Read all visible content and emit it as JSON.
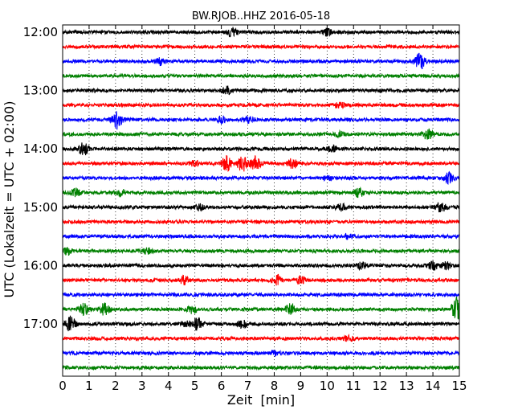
{
  "chart_data": {
    "type": "line",
    "title": "BW.RJOB..HHZ 2016-05-18",
    "xlabel": "Zeit  [min]",
    "ylabel": "UTC (Lokalzeit = UTC + 02:00)",
    "xlim": [
      0,
      15
    ],
    "x_ticks": [
      "0",
      "1",
      "2",
      "3",
      "4",
      "5",
      "6",
      "7",
      "8",
      "9",
      "10",
      "11",
      "12",
      "13",
      "14",
      "15"
    ],
    "y_tick_labels": [
      "12:00",
      "13:00",
      "14:00",
      "15:00",
      "16:00",
      "17:00"
    ],
    "grid": "vertical dotted at each minute",
    "trace_colors": [
      "#000000",
      "#ff0000",
      "#0000ff",
      "#008000"
    ],
    "traces": [
      {
        "start": "12:00",
        "events": [
          [
            6.4,
            1.6
          ],
          [
            10.0,
            1.2
          ]
        ]
      },
      {
        "start": "12:15",
        "events": []
      },
      {
        "start": "12:30",
        "events": [
          [
            3.7,
            1.2
          ],
          [
            13.5,
            3.0
          ]
        ]
      },
      {
        "start": "12:45",
        "events": []
      },
      {
        "start": "13:00",
        "events": [
          [
            6.2,
            1.4
          ]
        ]
      },
      {
        "start": "13:15",
        "events": [
          [
            10.5,
            1.0
          ]
        ]
      },
      {
        "start": "13:30",
        "events": [
          [
            2.05,
            3.5
          ],
          [
            6.0,
            1.2
          ],
          [
            7.0,
            1.0
          ]
        ]
      },
      {
        "start": "13:45",
        "events": [
          [
            13.8,
            2.0
          ],
          [
            10.5,
            0.8
          ]
        ]
      },
      {
        "start": "14:00",
        "events": [
          [
            0.8,
            2.2
          ],
          [
            10.2,
            1.0
          ]
        ]
      },
      {
        "start": "14:15",
        "events": [
          [
            6.2,
            2.8
          ],
          [
            6.8,
            3.2
          ],
          [
            7.3,
            2.6
          ],
          [
            8.7,
            2.0
          ],
          [
            5.0,
            1.2
          ]
        ]
      },
      {
        "start": "14:30",
        "events": [
          [
            14.6,
            1.8
          ],
          [
            10.0,
            0.9
          ]
        ]
      },
      {
        "start": "14:45",
        "events": [
          [
            0.5,
            1.4
          ],
          [
            2.2,
            1.2
          ],
          [
            11.2,
            1.5
          ]
        ]
      },
      {
        "start": "15:00",
        "events": [
          [
            10.5,
            1.3
          ],
          [
            14.3,
            1.8
          ],
          [
            5.2,
            1.0
          ]
        ]
      },
      {
        "start": "15:15",
        "events": []
      },
      {
        "start": "15:30",
        "events": [
          [
            10.8,
            0.9
          ]
        ]
      },
      {
        "start": "15:45",
        "events": [
          [
            0.2,
            1.2
          ],
          [
            3.2,
            1.1
          ]
        ]
      },
      {
        "start": "16:00",
        "events": [
          [
            11.3,
            1.2
          ],
          [
            14.0,
            1.6
          ],
          [
            14.5,
            1.2
          ]
        ]
      },
      {
        "start": "16:15",
        "events": [
          [
            4.6,
            1.4
          ],
          [
            8.1,
            2.0
          ],
          [
            9.0,
            1.4
          ]
        ]
      },
      {
        "start": "16:30",
        "events": []
      },
      {
        "start": "16:45",
        "events": [
          [
            0.8,
            2.4
          ],
          [
            1.6,
            2.6
          ],
          [
            4.9,
            1.4
          ],
          [
            8.6,
            2.0
          ],
          [
            14.9,
            4.5
          ]
        ]
      },
      {
        "start": "17:00",
        "events": [
          [
            0.3,
            3.0
          ],
          [
            5.1,
            2.4
          ],
          [
            6.8,
            1.5
          ],
          [
            4.7,
            1.2
          ]
        ]
      },
      {
        "start": "17:15",
        "events": [
          [
            10.8,
            1.0
          ]
        ]
      },
      {
        "start": "17:30",
        "events": [
          [
            8.0,
            0.8
          ]
        ]
      },
      {
        "start": "17:45",
        "events": []
      }
    ]
  }
}
